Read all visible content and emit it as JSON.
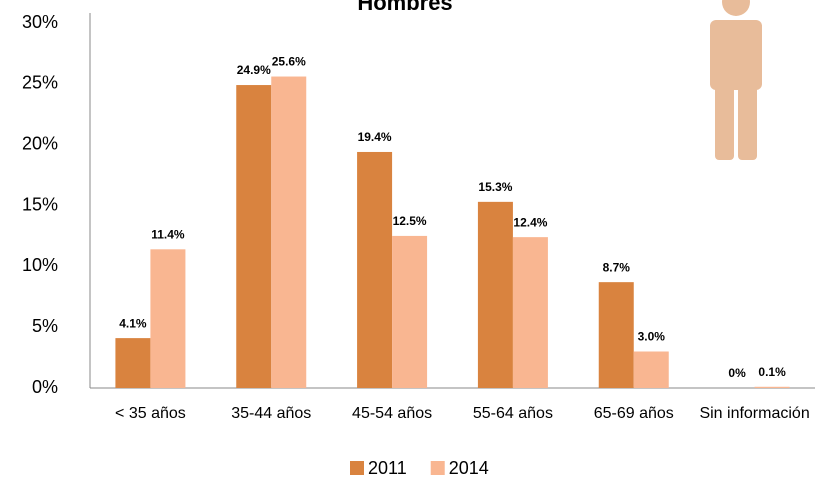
{
  "chart_data": {
    "type": "bar",
    "title": "Hombres",
    "categories": [
      "< 35 años",
      "35-44 años",
      "45-54 años",
      "55-64 años",
      "65-69 años",
      "Sin información"
    ],
    "series": [
      {
        "name": "2011",
        "color": "#d9833f",
        "values": [
          4.1,
          24.9,
          19.4,
          15.3,
          8.7,
          0
        ],
        "value_labels": [
          "4.1%",
          "24.9%",
          "19.4%",
          "15.3%",
          "8.7%",
          "0%"
        ]
      },
      {
        "name": "2014",
        "color": "#f9b691",
        "values": [
          11.4,
          25.6,
          12.5,
          12.4,
          3.0,
          0.1
        ],
        "value_labels": [
          "11.4%",
          "25.6%",
          "12.5%",
          "12.4%",
          "3.0%",
          "0.1%"
        ]
      }
    ],
    "ylim": [
      0,
      30
    ],
    "yticks": [
      {
        "value": 0,
        "label": "0%"
      },
      {
        "value": 5,
        "label": "5%"
      },
      {
        "value": 10,
        "label": "10%"
      },
      {
        "value": 15,
        "label": "15%"
      },
      {
        "value": 20,
        "label": "20%"
      },
      {
        "value": 25,
        "label": "25%"
      },
      {
        "value": 30,
        "label": "30%"
      }
    ],
    "legend": "bottom"
  }
}
